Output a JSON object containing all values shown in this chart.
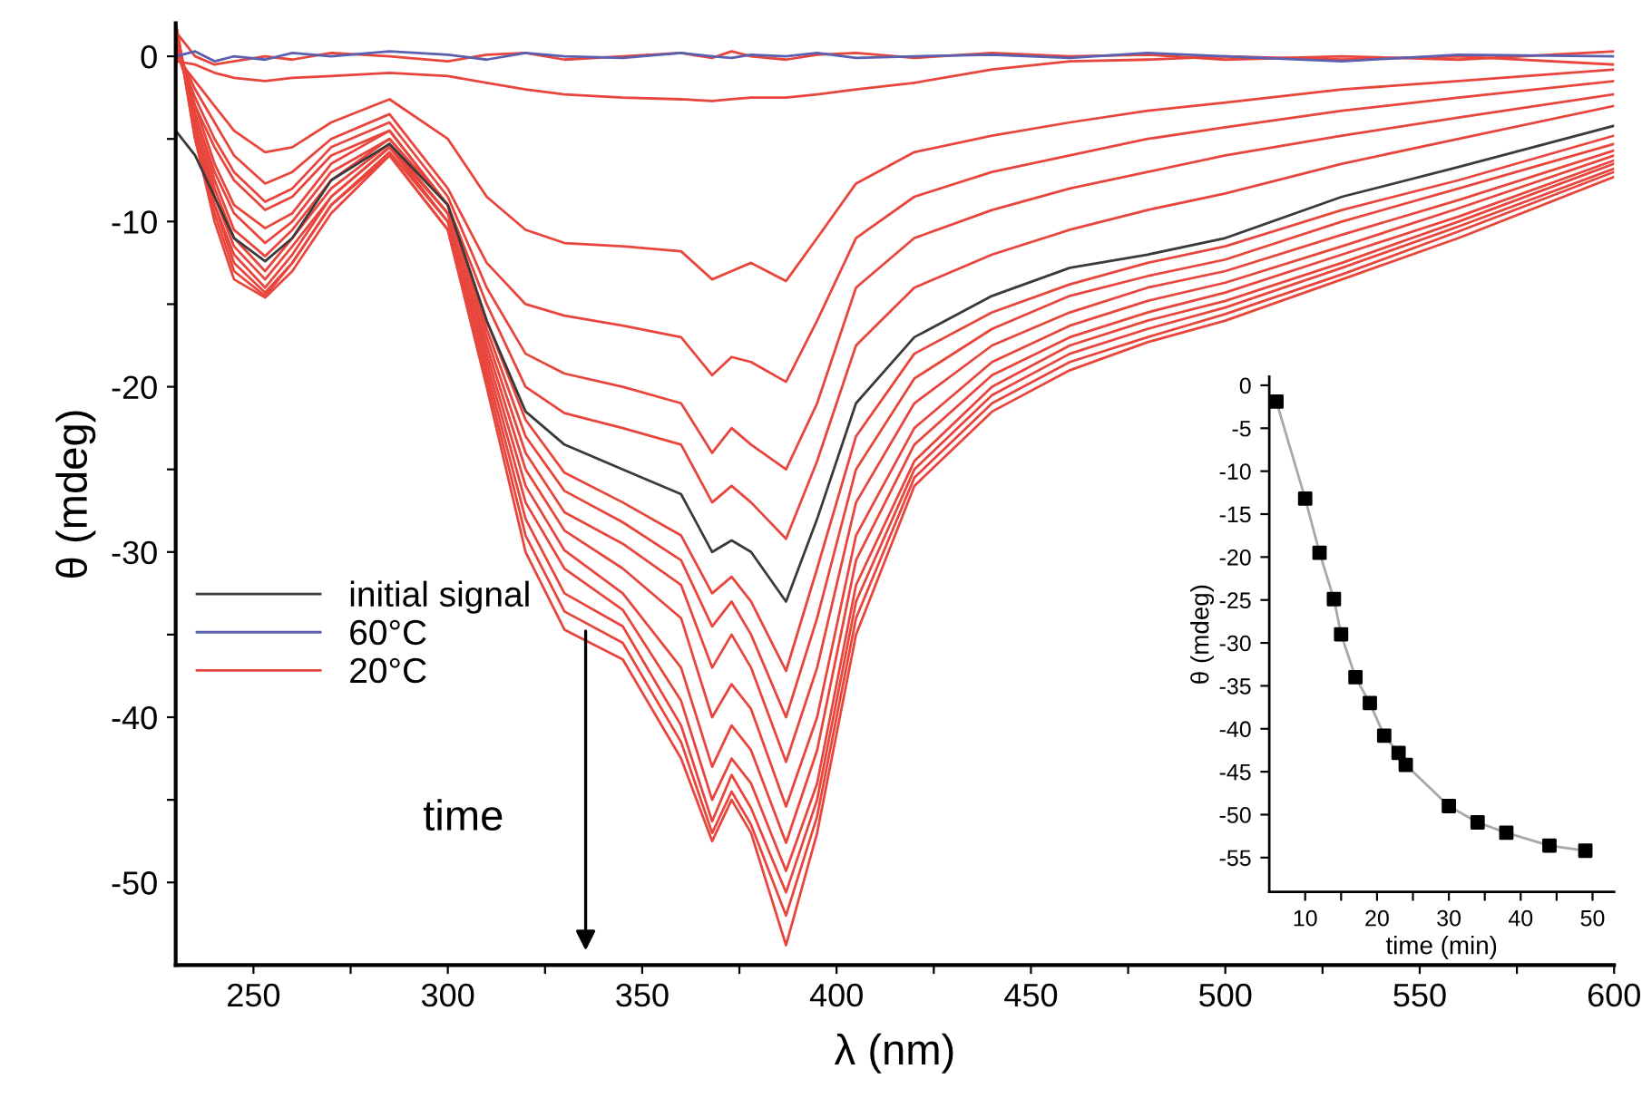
{
  "chart_data": [
    {
      "type": "line",
      "xlabel": "λ (nm)",
      "ylabel": "θ (mdeg)",
      "annotations": [
        "time"
      ],
      "legend": "left",
      "grid": false,
      "x": [
        230,
        235,
        240,
        245,
        253,
        260,
        270,
        285,
        300,
        310,
        320,
        330,
        345,
        360,
        368,
        373,
        378,
        387,
        395,
        405,
        420,
        440,
        460,
        480,
        500,
        530,
        560,
        600
      ],
      "xlim": [
        230,
        600
      ],
      "ylim": [
        -55,
        2
      ],
      "xticks": [
        250,
        {
          "value": 275,
          "label": null
        },
        300,
        {
          "value": 325,
          "label": null
        },
        350,
        {
          "value": 375,
          "label": null
        },
        400,
        {
          "value": 425,
          "label": null
        },
        450,
        {
          "value": 475,
          "label": null
        },
        500,
        {
          "value": 525,
          "label": null
        },
        550,
        {
          "value": 575,
          "label": null
        },
        600
      ],
      "yticks": [
        -50,
        {
          "value": -45,
          "label": null
        },
        -40,
        {
          "value": -35,
          "label": null
        },
        -30,
        {
          "value": -25,
          "label": null
        },
        -20,
        {
          "value": -15,
          "label": null
        },
        -10,
        {
          "value": -5,
          "label": null
        },
        0
      ],
      "series": [
        {
          "color": "#e8453c",
          "values": [
            1.5,
            0,
            -0.5,
            -0.3,
            0,
            -0.2,
            0.2,
            0,
            -0.3,
            0.1,
            0.2,
            -0.2,
            0,
            0.2,
            -0.1,
            0.3,
            0,
            -0.2,
            0.1,
            0.2,
            -0.1,
            0.2,
            0,
            0.1,
            -0.2,
            0,
            -0.2,
            0.3
          ]
        },
        {
          "color": "#e8453c",
          "values": [
            -0.3,
            -0.5,
            -1,
            -1.3,
            -1.5,
            -1.3,
            -1.2,
            -1,
            -1.2,
            -1.6,
            -2,
            -2.3,
            -2.5,
            -2.6,
            -2.7,
            -2.6,
            -2.5,
            -2.5,
            -2.3,
            -2,
            -1.6,
            -0.8,
            -0.3,
            -0.2,
            0,
            -0.2,
            0,
            -0.5
          ]
        },
        {
          "color": "#e8453c",
          "values": [
            0,
            -1.5,
            -3,
            -4.5,
            -5.8,
            -5.5,
            -4,
            -2.6,
            -5,
            -8.5,
            -10.5,
            -11.3,
            -11.5,
            -11.8,
            -13.5,
            -13,
            -12.5,
            -13.6,
            -11,
            -7.7,
            -5.8,
            -4.8,
            -4,
            -3.3,
            -2.8,
            -2,
            -1.5,
            -0.8
          ]
        },
        {
          "color": "#e8453c",
          "values": [
            0.5,
            -2,
            -4,
            -6,
            -7.7,
            -7,
            -5,
            -3.5,
            -8,
            -12.5,
            -15,
            -15.7,
            -16.3,
            -17,
            -19.3,
            -18.2,
            -18.5,
            -19.7,
            -16,
            -11,
            -8.5,
            -7,
            -6,
            -5,
            -4.3,
            -3.3,
            -2.5,
            -1.5
          ]
        },
        {
          "color": "#e8453c",
          "values": [
            0.5,
            -2.5,
            -5,
            -7,
            -8.8,
            -8,
            -5.5,
            -4,
            -8.5,
            -14,
            -18,
            -19.2,
            -20,
            -21,
            -24,
            -22.5,
            -23.5,
            -25,
            -21,
            -14,
            -11,
            -9.3,
            -8,
            -7,
            -6,
            -4.8,
            -3.7,
            -2.3
          ]
        },
        {
          "color": "#e8453c",
          "values": [
            0.5,
            -3,
            -5.5,
            -7.5,
            -9.3,
            -8.5,
            -6,
            -4.5,
            -9,
            -15,
            -20,
            -21.6,
            -22.5,
            -23.5,
            -27,
            -26,
            -27,
            -29.2,
            -24.5,
            -17.5,
            -14,
            -12,
            -10.5,
            -9.3,
            -8.3,
            -6.5,
            -5,
            -3
          ]
        },
        {
          "color": "#e8453c",
          "values": [
            1,
            -3,
            -6.5,
            -9,
            -10.4,
            -9.5,
            -6.5,
            -4.5,
            -9,
            -16,
            -22,
            -25.2,
            -27,
            -29,
            -32.5,
            -31.5,
            -33,
            -37.2,
            -31,
            -23,
            -18,
            -15.5,
            -13.8,
            -12.5,
            -11.5,
            -9.3,
            -7.5,
            -4.8
          ]
        },
        {
          "color": "#e8453c",
          "values": [
            1,
            -3.5,
            -7,
            -9.5,
            -11.3,
            -10,
            -7,
            -5,
            -9,
            -16.5,
            -23,
            -26.3,
            -28.2,
            -30.5,
            -34.5,
            -33,
            -35,
            -40,
            -34,
            -25,
            -19.5,
            -16.5,
            -14.5,
            -13.3,
            -12.3,
            -10,
            -8,
            -5.3
          ]
        },
        {
          "color": "#e8453c",
          "values": [
            1.5,
            -3.5,
            -7.5,
            -10.5,
            -12.1,
            -10.5,
            -7.5,
            -5,
            -9,
            -17,
            -24,
            -27.6,
            -29.5,
            -32,
            -37,
            -35,
            -37,
            -42.7,
            -37,
            -27,
            -21,
            -17.5,
            -15.5,
            -14,
            -13,
            -10.8,
            -8.7,
            -5.7
          ]
        },
        {
          "color": "#e8453c",
          "values": [
            1.5,
            -4,
            -8,
            -11,
            -13,
            -11,
            -8,
            -5.3,
            -9.5,
            -17.5,
            -25,
            -28.7,
            -31,
            -34,
            -40,
            -38,
            -39.5,
            -45.4,
            -40,
            -29,
            -22.5,
            -18.5,
            -16.3,
            -14.8,
            -13.7,
            -11.5,
            -9.2,
            -6
          ]
        },
        {
          "color": "#e8453c",
          "values": [
            1.5,
            -4,
            -8.5,
            -11.5,
            -13.5,
            -11.5,
            -8.5,
            -5.5,
            -9.5,
            -18,
            -26,
            -29.9,
            -32.5,
            -37,
            -43,
            -40.5,
            -42,
            -47.6,
            -42,
            -30.5,
            -23.5,
            -19.3,
            -17,
            -15.5,
            -14.3,
            -12,
            -9.7,
            -6.3
          ]
        },
        {
          "color": "#e8453c",
          "values": [
            2,
            -4.5,
            -9,
            -12,
            -14,
            -12,
            -8.5,
            -5.5,
            -10,
            -18.5,
            -27,
            -31,
            -33.5,
            -39,
            -45,
            -42.5,
            -44,
            -49.3,
            -44,
            -32,
            -24.5,
            -20,
            -17.5,
            -16,
            -14.8,
            -12.5,
            -10,
            -6.5
          ]
        },
        {
          "color": "#e8453c",
          "values": [
            2,
            -4.5,
            -9,
            -12.5,
            -14.3,
            -12.5,
            -9,
            -5.8,
            -10,
            -19,
            -28,
            -32.5,
            -34.5,
            -40.5,
            -46.3,
            -43.5,
            -45.5,
            -50.6,
            -45,
            -33,
            -25,
            -20.5,
            -18,
            -16.5,
            -15.2,
            -12.8,
            -10.3,
            -6.8
          ]
        },
        {
          "color": "#e8453c",
          "values": [
            2,
            -5,
            -9.5,
            -13,
            -14.5,
            -12.5,
            -9,
            -6,
            -10.5,
            -19.5,
            -29,
            -33.6,
            -35.5,
            -41.5,
            -47,
            -44.5,
            -46.5,
            -52,
            -46,
            -34,
            -25.5,
            -21,
            -18.5,
            -17,
            -15.6,
            -13.2,
            -10.6,
            -7
          ]
        },
        {
          "name": "20°C",
          "color": "#e8453c",
          "values": [
            2,
            -5,
            -10,
            -13.5,
            -14.6,
            -13,
            -9.5,
            -6,
            -10.5,
            -20,
            -30,
            -34.7,
            -36.5,
            -42.5,
            -47.5,
            -45,
            -47,
            -53.8,
            -47,
            -35,
            -26,
            -21.5,
            -19,
            -17.3,
            -16,
            -13.5,
            -11,
            -7.3
          ]
        },
        {
          "name": "60°C",
          "color": "#5a5fb0",
          "values": [
            0,
            0.3,
            -0.3,
            0,
            -0.2,
            0.2,
            0,
            0.3,
            0.1,
            -0.2,
            0.2,
            0,
            -0.1,
            0.2,
            0,
            -0.1,
            0.1,
            0,
            0.2,
            -0.1,
            0,
            0.1,
            -0.1,
            0.2,
            0,
            -0.3,
            0.1,
            0
          ]
        },
        {
          "name": "initial signal",
          "color": "#3a3a3a",
          "values": [
            -4.5,
            -6,
            -8.5,
            -11,
            -12.4,
            -11,
            -7.5,
            -5.3,
            -9,
            -16,
            -21.5,
            -23.5,
            -25,
            -26.5,
            -30,
            -29.3,
            -30,
            -33,
            -28,
            -21,
            -17,
            -14.5,
            -12.8,
            -12,
            -11,
            -8.5,
            -6.7,
            -4.2
          ]
        }
      ]
    },
    {
      "type": "scatter",
      "xlabel": "time (min)",
      "ylabel": "θ (mdeg)",
      "marker": "square",
      "grid": false,
      "x": [
        6,
        10,
        12,
        14,
        15,
        17,
        19,
        21,
        23,
        24,
        30,
        34,
        38,
        44,
        49
      ],
      "xlim": [
        5,
        53
      ],
      "ylim": [
        -59,
        1
      ],
      "xticks": [
        10,
        {
          "value": 15,
          "label": null
        },
        20,
        {
          "value": 25,
          "label": null
        },
        30,
        {
          "value": 35,
          "label": null
        },
        40,
        {
          "value": 45,
          "label": null
        },
        50
      ],
      "yticks": [
        -55,
        -50,
        -45,
        -40,
        -35,
        -30,
        -25,
        -20,
        -15,
        -10,
        -5,
        0
      ],
      "series": [
        {
          "type": "line",
          "color": "#a8a8a8",
          "marker": "none",
          "values": [
            -1.9,
            -13.2,
            -19.5,
            -24.9,
            -29,
            -34,
            -37,
            -40.8,
            -42.8,
            -44.2,
            -49,
            -50.9,
            -52.1,
            -53.6,
            -54.2
          ]
        },
        {
          "color": "#000000",
          "values": [
            -1.9,
            -13.2,
            -19.5,
            -24.9,
            -29,
            -34,
            -37,
            -40.8,
            -42.8,
            -44.2,
            -49,
            -50.9,
            -52.1,
            -53.6,
            -54.2
          ]
        }
      ]
    }
  ]
}
